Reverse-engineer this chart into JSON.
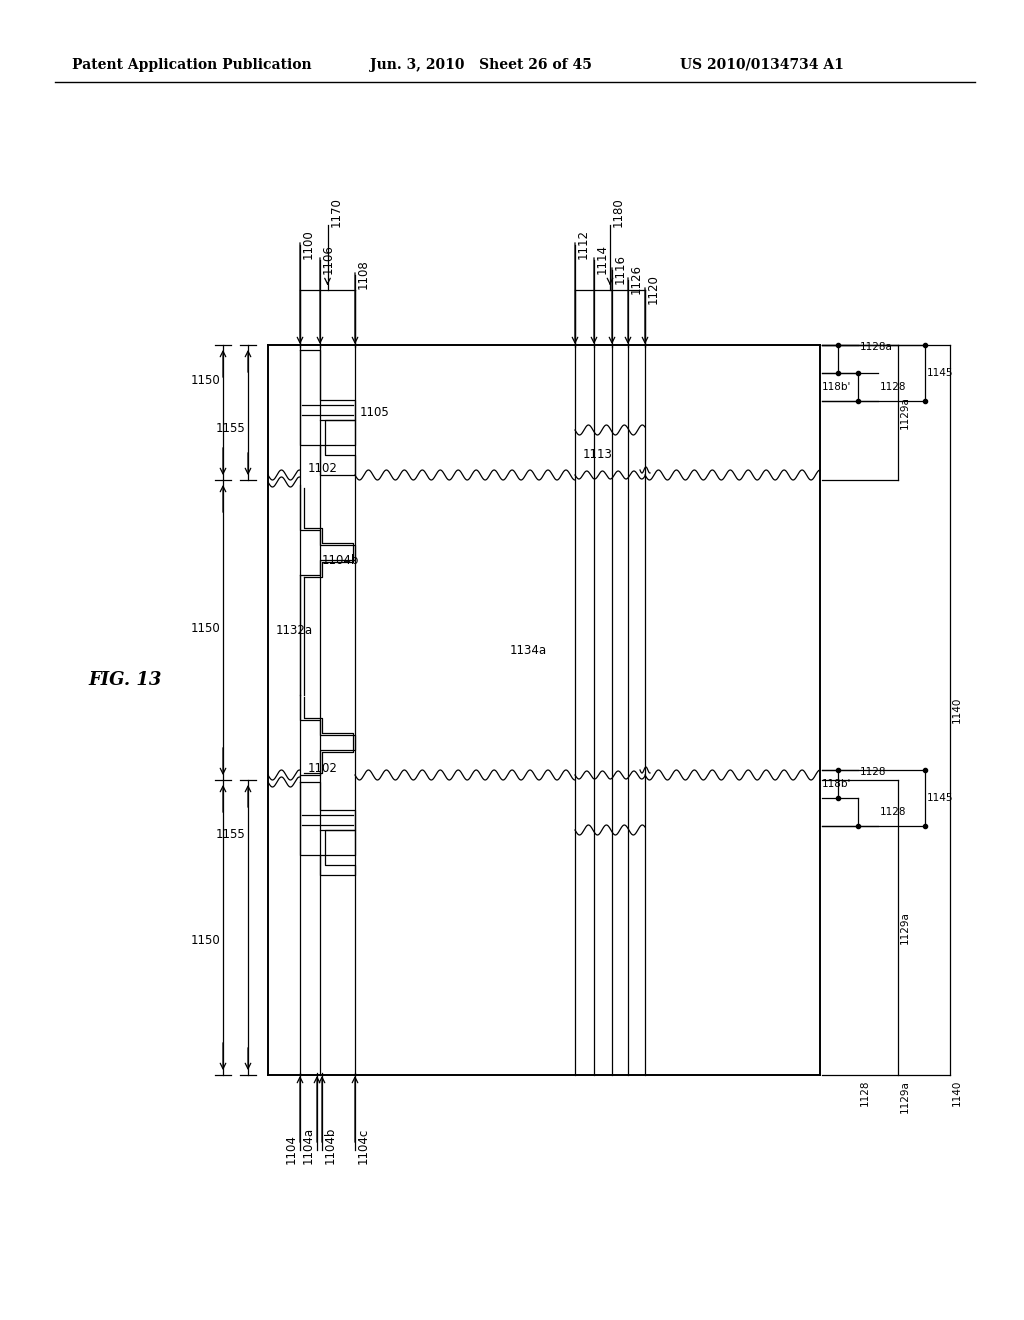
{
  "bg_color": "#ffffff",
  "header_left": "Patent Application Publication",
  "header_mid": "Jun. 3, 2010   Sheet 26 of 45",
  "header_right": "US 2010/0134734 A1",
  "fig_label": "FIG. 13",
  "lw": 0.9,
  "lw2": 1.4,
  "fs": 8.5,
  "fs_hdr": 10,
  "fs_fig": 13
}
